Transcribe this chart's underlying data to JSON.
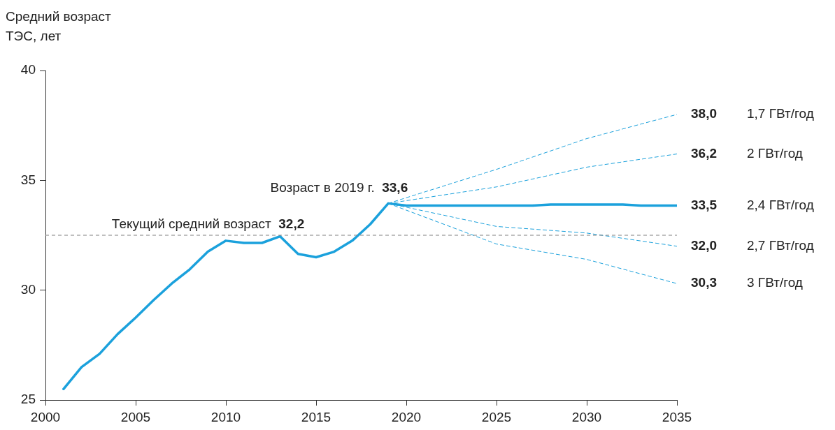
{
  "chart_data": {
    "type": "line",
    "ylabel": "Средний возраст\nТЭС, лет",
    "xlim": [
      2000,
      2035
    ],
    "xticks": [
      2000,
      2005,
      2010,
      2015,
      2020,
      2025,
      2030,
      2035
    ],
    "ylim": [
      25,
      40
    ],
    "yticks": [
      25,
      30,
      35,
      40
    ],
    "grid": false,
    "legend": false,
    "marker": "none",
    "series": [
      {
        "name": "2,4 ГВт/год",
        "color": "#1ba1dc",
        "line_style": "solid",
        "x": [
          2001,
          2002,
          2003,
          2004,
          2005,
          2006,
          2007,
          2008,
          2009,
          2010,
          2011,
          2012,
          2013,
          2014,
          2015,
          2016,
          2017,
          2018,
          2019,
          2020,
          2027,
          2028,
          2032,
          2033,
          2035
        ],
        "values": [
          25.5,
          26.5,
          27.1,
          28.0,
          28.75,
          29.55,
          30.3,
          30.95,
          31.75,
          32.25,
          32.15,
          32.15,
          32.45,
          31.65,
          31.5,
          31.75,
          32.25,
          33.0,
          33.95,
          33.85,
          33.85,
          33.9,
          33.9,
          33.85,
          33.85
        ]
      },
      {
        "name": "1,7 ГВт/год",
        "color": "#1ba1dc",
        "line_style": "dashed",
        "x": [
          2019,
          2025,
          2030,
          2035
        ],
        "values": [
          33.95,
          35.5,
          36.9,
          38.0
        ],
        "value_labels": [
          null,
          null,
          null,
          "38,0"
        ]
      },
      {
        "name": "2 ГВт/год",
        "color": "#1ba1dc",
        "line_style": "dashed",
        "x": [
          2019,
          2025,
          2030,
          2035
        ],
        "values": [
          33.95,
          34.7,
          35.6,
          36.2
        ],
        "value_labels": [
          null,
          null,
          null,
          "36,2"
        ]
      },
      {
        "name": "2,7 ГВт/год",
        "color": "#1ba1dc",
        "line_style": "dashed",
        "x": [
          2019,
          2025,
          2030,
          2035
        ],
        "values": [
          33.95,
          32.9,
          32.6,
          32.0
        ],
        "value_labels": [
          null,
          null,
          null,
          "32,0"
        ]
      },
      {
        "name": "3 ГВт/год",
        "color": "#1ba1dc",
        "line_style": "dashed",
        "x": [
          2019,
          2025,
          2030,
          2035
        ],
        "values": [
          33.95,
          32.1,
          31.4,
          30.3
        ],
        "value_labels": [
          null,
          null,
          null,
          "30,3"
        ]
      }
    ],
    "ref_lines": [
      {
        "axis": "y",
        "value": 32.5,
        "label": "Текущий средний возраст 32,2",
        "color": "#808080",
        "line_style": "dashed"
      }
    ],
    "annotations": [
      {
        "text": "Возраст в 2019 г. 33,6",
        "x": 2019,
        "y": 33.95
      },
      {
        "text": "33,5",
        "x": 2035,
        "y": 33.85
      }
    ]
  }
}
